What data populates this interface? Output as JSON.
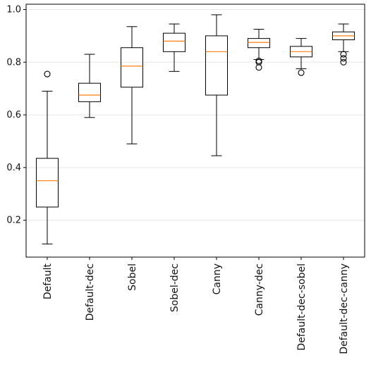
{
  "chart_data": {
    "type": "boxplot",
    "title": "",
    "xlabel": "",
    "ylabel": "",
    "ylim": [
      0.06,
      1.02
    ],
    "yticks": [
      0.2,
      0.4,
      0.6,
      0.8,
      1.0
    ],
    "ytick_labels": [
      "0.2",
      "0.4",
      "0.6",
      "0.8",
      "1.0"
    ],
    "grid": "horizontal",
    "colors": {
      "box": "#000000",
      "median": "#ff7f0e",
      "grid": "#e6e6e6"
    },
    "categories": [
      "Default",
      "Default-dec",
      "Sobel",
      "Sobel-dec",
      "Canny",
      "Canny-dec",
      "Default-dec-sobel",
      "Default-dec-canny"
    ],
    "boxes": [
      {
        "whislo": 0.11,
        "q1": 0.25,
        "med": 0.35,
        "q3": 0.435,
        "whishi": 0.69,
        "fliers": [
          0.755
        ]
      },
      {
        "whislo": 0.59,
        "q1": 0.65,
        "med": 0.675,
        "q3": 0.72,
        "whishi": 0.83,
        "fliers": []
      },
      {
        "whislo": 0.49,
        "q1": 0.705,
        "med": 0.785,
        "q3": 0.855,
        "whishi": 0.935,
        "fliers": []
      },
      {
        "whislo": 0.765,
        "q1": 0.84,
        "med": 0.88,
        "q3": 0.91,
        "whishi": 0.945,
        "fliers": []
      },
      {
        "whislo": 0.445,
        "q1": 0.675,
        "med": 0.84,
        "q3": 0.9,
        "whishi": 0.98,
        "fliers": []
      },
      {
        "whislo": 0.81,
        "q1": 0.855,
        "med": 0.875,
        "q3": 0.89,
        "whishi": 0.925,
        "fliers": [
          0.805,
          0.8,
          0.78
        ]
      },
      {
        "whislo": 0.775,
        "q1": 0.82,
        "med": 0.84,
        "q3": 0.86,
        "whishi": 0.89,
        "fliers": [
          0.76
        ]
      },
      {
        "whislo": 0.84,
        "q1": 0.885,
        "med": 0.9,
        "q3": 0.915,
        "whishi": 0.945,
        "fliers": [
          0.83,
          0.815,
          0.8
        ]
      }
    ]
  }
}
